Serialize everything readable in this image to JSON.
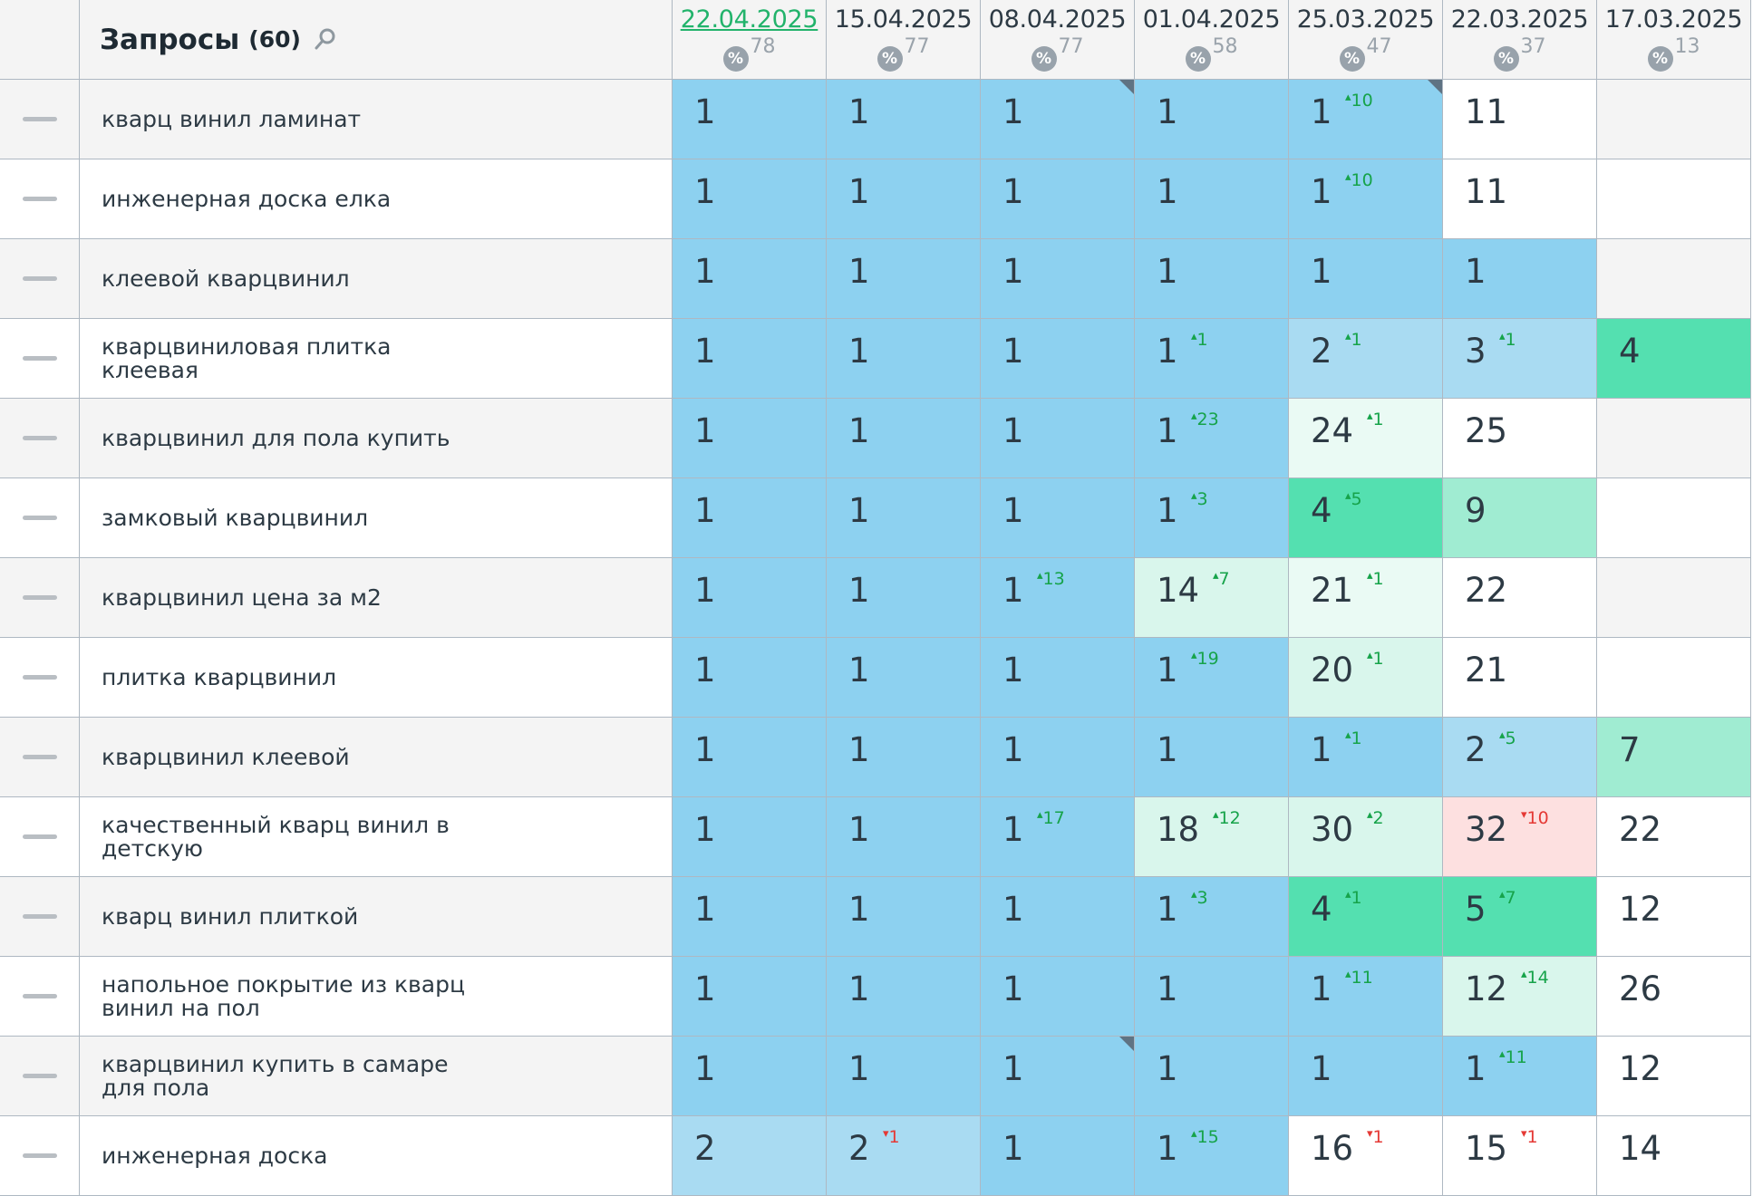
{
  "header": {
    "title": "Запросы",
    "count": "(60)",
    "dates": [
      {
        "label": "22.04.2025",
        "visibility": "78",
        "active": true
      },
      {
        "label": "15.04.2025",
        "visibility": "77",
        "active": false
      },
      {
        "label": "08.04.2025",
        "visibility": "77",
        "active": false
      },
      {
        "label": "01.04.2025",
        "visibility": "58",
        "active": false
      },
      {
        "label": "25.03.2025",
        "visibility": "47",
        "active": false
      },
      {
        "label": "22.03.2025",
        "visibility": "37",
        "active": false
      },
      {
        "label": "17.03.2025",
        "visibility": "13",
        "active": false
      }
    ]
  },
  "colors": {
    "top1": "#8dd1f0",
    "top3": "#a9dbf2",
    "top5": "#54e0b0",
    "top10": "#a0ecd2",
    "top20": "#d9f6ec",
    "top30": "#eafaf4",
    "worse": "#fde0e0",
    "none": "#ffffff",
    "up": "#16a34a",
    "down": "#e53935"
  },
  "rows": [
    {
      "query": "кварц винил ламинат",
      "cells": [
        {
          "v": "1",
          "c": "top1"
        },
        {
          "v": "1",
          "c": "top1"
        },
        {
          "v": "1",
          "c": "top1",
          "mark": true
        },
        {
          "v": "1",
          "c": "top1"
        },
        {
          "v": "1",
          "d": "10",
          "c": "top1",
          "mark": true
        },
        {
          "v": "11",
          "c": "none"
        },
        {
          "v": "",
          "c": "empty"
        }
      ]
    },
    {
      "query": "инженерная доска елка",
      "cells": [
        {
          "v": "1",
          "c": "top1"
        },
        {
          "v": "1",
          "c": "top1"
        },
        {
          "v": "1",
          "c": "top1"
        },
        {
          "v": "1",
          "c": "top1"
        },
        {
          "v": "1",
          "d": "10",
          "c": "top1"
        },
        {
          "v": "11",
          "c": "none"
        },
        {
          "v": "",
          "c": "empty"
        }
      ]
    },
    {
      "query": "клеевой кварцвинил",
      "cells": [
        {
          "v": "1",
          "c": "top1"
        },
        {
          "v": "1",
          "c": "top1"
        },
        {
          "v": "1",
          "c": "top1"
        },
        {
          "v": "1",
          "c": "top1"
        },
        {
          "v": "1",
          "c": "top1"
        },
        {
          "v": "1",
          "c": "top1"
        },
        {
          "v": "",
          "c": "empty"
        }
      ]
    },
    {
      "query": "кварцвиниловая плитка клеевая",
      "cells": [
        {
          "v": "1",
          "c": "top1"
        },
        {
          "v": "1",
          "c": "top1"
        },
        {
          "v": "1",
          "c": "top1"
        },
        {
          "v": "1",
          "d": "1",
          "c": "top1"
        },
        {
          "v": "2",
          "d": "1",
          "c": "top3"
        },
        {
          "v": "3",
          "d": "1",
          "c": "top3"
        },
        {
          "v": "4",
          "c": "top5"
        }
      ]
    },
    {
      "query": "кварцвинил для пола купить",
      "cells": [
        {
          "v": "1",
          "c": "top1"
        },
        {
          "v": "1",
          "c": "top1"
        },
        {
          "v": "1",
          "c": "top1"
        },
        {
          "v": "1",
          "d": "23",
          "c": "top1"
        },
        {
          "v": "24",
          "d": "1",
          "c": "top30"
        },
        {
          "v": "25",
          "c": "none"
        },
        {
          "v": "",
          "c": "empty"
        }
      ]
    },
    {
      "query": "замковый кварцвинил",
      "cells": [
        {
          "v": "1",
          "c": "top1"
        },
        {
          "v": "1",
          "c": "top1"
        },
        {
          "v": "1",
          "c": "top1"
        },
        {
          "v": "1",
          "d": "3",
          "c": "top1"
        },
        {
          "v": "4",
          "d": "5",
          "c": "top5"
        },
        {
          "v": "9",
          "c": "top10"
        },
        {
          "v": "",
          "c": "empty"
        }
      ]
    },
    {
      "query": "кварцвинил цена за м2",
      "cells": [
        {
          "v": "1",
          "c": "top1"
        },
        {
          "v": "1",
          "c": "top1"
        },
        {
          "v": "1",
          "d": "13",
          "c": "top1"
        },
        {
          "v": "14",
          "d": "7",
          "c": "top20"
        },
        {
          "v": "21",
          "d": "1",
          "c": "top30"
        },
        {
          "v": "22",
          "c": "none"
        },
        {
          "v": "",
          "c": "empty"
        }
      ]
    },
    {
      "query": "плитка кварцвинил",
      "cells": [
        {
          "v": "1",
          "c": "top1"
        },
        {
          "v": "1",
          "c": "top1"
        },
        {
          "v": "1",
          "c": "top1"
        },
        {
          "v": "1",
          "d": "19",
          "c": "top1"
        },
        {
          "v": "20",
          "d": "1",
          "c": "top20"
        },
        {
          "v": "21",
          "c": "none"
        },
        {
          "v": "",
          "c": "empty"
        }
      ]
    },
    {
      "query": "кварцвинил клеевой",
      "cells": [
        {
          "v": "1",
          "c": "top1"
        },
        {
          "v": "1",
          "c": "top1"
        },
        {
          "v": "1",
          "c": "top1"
        },
        {
          "v": "1",
          "c": "top1"
        },
        {
          "v": "1",
          "d": "1",
          "c": "top1"
        },
        {
          "v": "2",
          "d": "5",
          "c": "top3"
        },
        {
          "v": "7",
          "c": "top10"
        }
      ]
    },
    {
      "query": "качественный кварц винил в детскую",
      "cells": [
        {
          "v": "1",
          "c": "top1"
        },
        {
          "v": "1",
          "c": "top1"
        },
        {
          "v": "1",
          "d": "17",
          "c": "top1"
        },
        {
          "v": "18",
          "d": "12",
          "c": "top20"
        },
        {
          "v": "30",
          "d": "2",
          "c": "top20"
        },
        {
          "v": "32",
          "d": "10",
          "down": true,
          "c": "worse"
        },
        {
          "v": "22",
          "c": "none"
        }
      ]
    },
    {
      "query": "кварц винил плиткой",
      "cells": [
        {
          "v": "1",
          "c": "top1"
        },
        {
          "v": "1",
          "c": "top1"
        },
        {
          "v": "1",
          "c": "top1"
        },
        {
          "v": "1",
          "d": "3",
          "c": "top1"
        },
        {
          "v": "4",
          "d": "1",
          "c": "top5"
        },
        {
          "v": "5",
          "d": "7",
          "c": "top5"
        },
        {
          "v": "12",
          "c": "none"
        }
      ]
    },
    {
      "query": "напольное покрытие из кварц винил на пол",
      "cells": [
        {
          "v": "1",
          "c": "top1"
        },
        {
          "v": "1",
          "c": "top1"
        },
        {
          "v": "1",
          "c": "top1"
        },
        {
          "v": "1",
          "c": "top1"
        },
        {
          "v": "1",
          "d": "11",
          "c": "top1"
        },
        {
          "v": "12",
          "d": "14",
          "c": "top20"
        },
        {
          "v": "26",
          "c": "none"
        }
      ]
    },
    {
      "query": "кварцвинил купить в самаре для пола",
      "cells": [
        {
          "v": "1",
          "c": "top1"
        },
        {
          "v": "1",
          "c": "top1"
        },
        {
          "v": "1",
          "c": "top1",
          "mark": true
        },
        {
          "v": "1",
          "c": "top1"
        },
        {
          "v": "1",
          "c": "top1"
        },
        {
          "v": "1",
          "d": "11",
          "c": "top1"
        },
        {
          "v": "12",
          "c": "none"
        }
      ]
    },
    {
      "query": "инженерная доска",
      "cells": [
        {
          "v": "2",
          "c": "top3"
        },
        {
          "v": "2",
          "d": "1",
          "down": true,
          "c": "top3"
        },
        {
          "v": "1",
          "c": "top1"
        },
        {
          "v": "1",
          "d": "15",
          "c": "top1"
        },
        {
          "v": "16",
          "d": "1",
          "down": true,
          "c": "none"
        },
        {
          "v": "15",
          "d": "1",
          "down": true,
          "c": "none"
        },
        {
          "v": "14",
          "c": "none"
        }
      ]
    }
  ]
}
